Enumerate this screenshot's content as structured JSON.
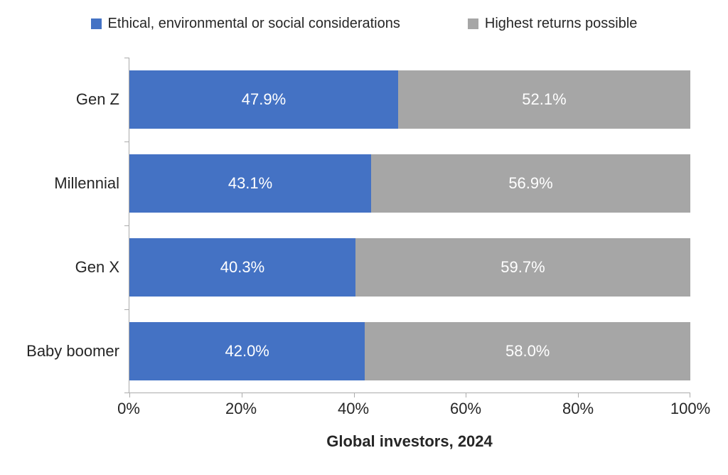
{
  "chart_data": {
    "type": "bar",
    "orientation": "horizontal",
    "stacked": true,
    "title": "",
    "xlabel": "Global investors, 2024",
    "ylabel": "",
    "categories": [
      "Gen Z",
      "Millennial",
      "Gen X",
      "Baby boomer"
    ],
    "series": [
      {
        "name": "Ethical, environmental or social considerations",
        "color": "#4472C4",
        "values": [
          47.9,
          43.1,
          40.3,
          42.0
        ],
        "labels": [
          "47.9%",
          "43.1%",
          "40.3%",
          "42.0%"
        ]
      },
      {
        "name": "Highest returns possible",
        "color": "#A6A6A6",
        "values": [
          52.1,
          56.9,
          59.7,
          58.0
        ],
        "labels": [
          "52.1%",
          "56.9%",
          "59.7%",
          "58.0%"
        ]
      }
    ],
    "x_ticks": [
      "0%",
      "20%",
      "40%",
      "60%",
      "80%",
      "100%"
    ],
    "xlim": [
      0,
      100
    ],
    "grid": false,
    "legend_position": "top",
    "data_label_color": "#FFFFFF",
    "axis_line_color": "#ABABAB",
    "text_color": "#262626",
    "background_color": "#FFFFFF"
  }
}
